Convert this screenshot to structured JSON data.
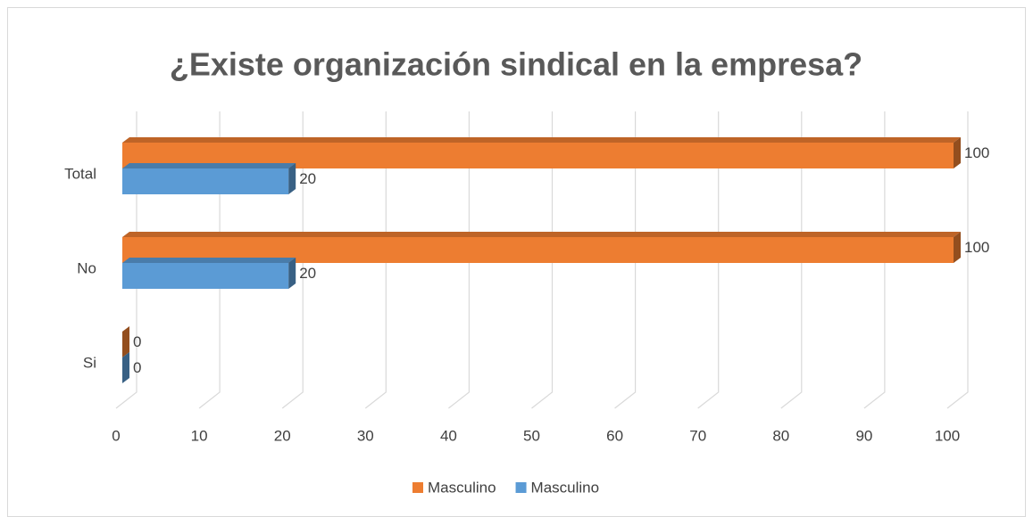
{
  "chart_data": {
    "type": "bar3d_horizontal",
    "title": "¿Existe organización sindical en la empresa?",
    "categories": [
      "Si",
      "No",
      "Total"
    ],
    "series": [
      {
        "name": "Masculino",
        "color": "#ED7D31",
        "values": [
          0,
          100,
          100
        ]
      },
      {
        "name": "Masculino",
        "color": "#5B9BD5",
        "values": [
          0,
          20,
          20
        ]
      }
    ],
    "xlim": [
      0,
      100
    ],
    "xticks": [
      0,
      10,
      20,
      30,
      40,
      50,
      60,
      70,
      80,
      90,
      100
    ],
    "grid": true,
    "legend": "bottom"
  }
}
